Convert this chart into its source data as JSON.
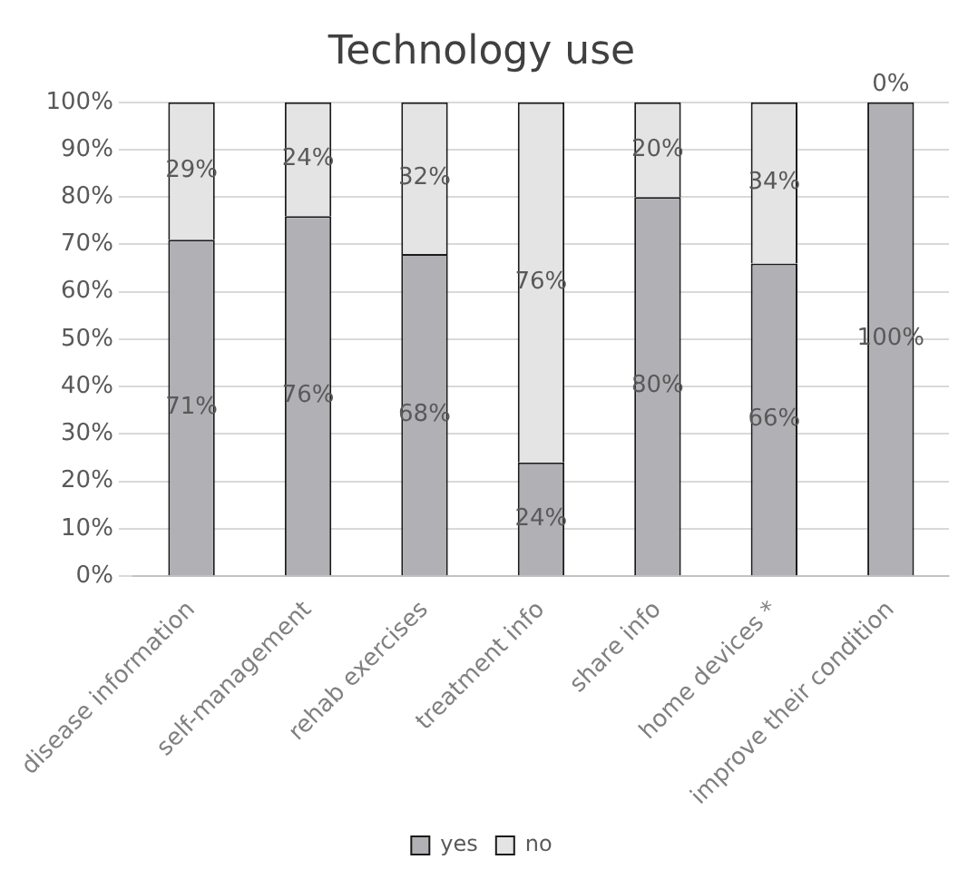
{
  "chart_data": {
    "type": "bar",
    "title": "Technology use",
    "stacked": true,
    "categories": [
      "disease information",
      "self-management",
      "rehab exercises",
      "treatment info",
      "share info",
      "home devices *",
      "improve their condition"
    ],
    "series": [
      {
        "name": "yes",
        "color": "#b1b1b5",
        "values": [
          71,
          76,
          68,
          24,
          80,
          66,
          100
        ],
        "value_labels": [
          "71%",
          "76%",
          "68%",
          "24%",
          "80%",
          "66%",
          "100%"
        ]
      },
      {
        "name": "no",
        "color": "#e4e4e4",
        "values": [
          29,
          24,
          32,
          76,
          20,
          34,
          0
        ],
        "value_labels": [
          "29%",
          "24%",
          "32%",
          "76%",
          "20%",
          "34%",
          "0%"
        ]
      }
    ],
    "ylim": [
      0,
      100
    ],
    "yticks": [
      {
        "value": 0,
        "label": "0%"
      },
      {
        "value": 10,
        "label": "10%"
      },
      {
        "value": 20,
        "label": "20%"
      },
      {
        "value": 30,
        "label": "30%"
      },
      {
        "value": 40,
        "label": "40%"
      },
      {
        "value": 50,
        "label": "50%"
      },
      {
        "value": 60,
        "label": "60%"
      },
      {
        "value": 70,
        "label": "70%"
      },
      {
        "value": 80,
        "label": "80%"
      },
      {
        "value": 90,
        "label": "90%"
      },
      {
        "value": 100,
        "label": "100%"
      }
    ],
    "grid": "y",
    "legend": "bottom"
  }
}
